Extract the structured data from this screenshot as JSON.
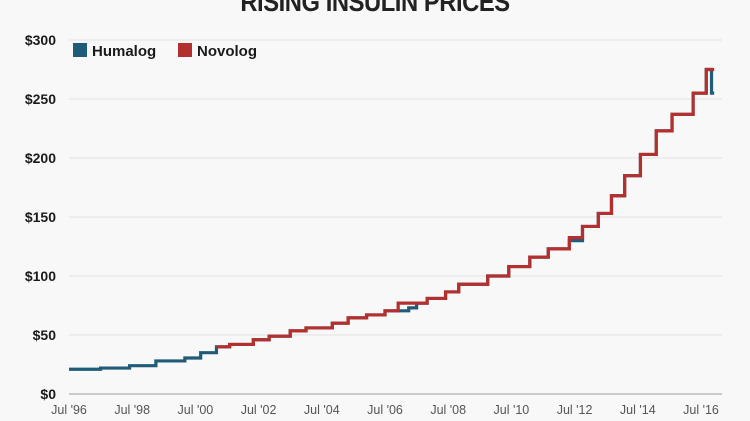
{
  "chart_data": {
    "type": "line",
    "step": true,
    "title": "RISING INSULIN PRICES",
    "xlabel": "",
    "ylabel": "",
    "ylim": [
      0,
      300
    ],
    "xlim": [
      "1996-07",
      "2017-01"
    ],
    "grid": true,
    "legend_position": "top-left",
    "y_ticks": [
      "$0",
      "$50",
      "$100",
      "$150",
      "$200",
      "$250",
      "$300"
    ],
    "y_tick_values": [
      0,
      50,
      100,
      150,
      200,
      250,
      300
    ],
    "x_ticks": [
      "Jul '96",
      "Jul '98",
      "Jul '00",
      "Jul '02",
      "Jul '04",
      "Jul '06",
      "Jul '08",
      "Jul '10",
      "Jul '12",
      "Jul '14",
      "Jul '16"
    ],
    "x_tick_values": [
      "1996-07",
      "1998-07",
      "2000-07",
      "2002-07",
      "2004-07",
      "2006-07",
      "2008-07",
      "2010-07",
      "2012-07",
      "2014-07",
      "2016-07"
    ],
    "series": [
      {
        "name": "Humalog",
        "color": "#1f5c78",
        "end": "2016-12",
        "points": [
          [
            "1996-07",
            21
          ],
          [
            "1997-07",
            22
          ],
          [
            "1998-06",
            24
          ],
          [
            "1999-04",
            28
          ],
          [
            "2000-03",
            30.5
          ],
          [
            "2000-09",
            35
          ],
          [
            "2001-03",
            40
          ],
          [
            "2001-08",
            42
          ],
          [
            "2002-05",
            46
          ],
          [
            "2002-11",
            49
          ],
          [
            "2003-07",
            53.5
          ],
          [
            "2004-01",
            56
          ],
          [
            "2004-11",
            60
          ],
          [
            "2005-05",
            64.5
          ],
          [
            "2005-12",
            67
          ],
          [
            "2006-07",
            70.5
          ],
          [
            "2007-04",
            73
          ],
          [
            "2007-07",
            77
          ],
          [
            "2007-11",
            81
          ],
          [
            "2008-06",
            86.5
          ],
          [
            "2008-11",
            93
          ],
          [
            "2009-10",
            100
          ],
          [
            "2010-06",
            108
          ],
          [
            "2011-02",
            116
          ],
          [
            "2011-09",
            123
          ],
          [
            "2012-05",
            130
          ],
          [
            "2012-10",
            142
          ],
          [
            "2013-04",
            153
          ],
          [
            "2013-09",
            168
          ],
          [
            "2014-02",
            185
          ],
          [
            "2014-08",
            203
          ],
          [
            "2015-02",
            223
          ],
          [
            "2015-08",
            237
          ],
          [
            "2016-04",
            255
          ],
          [
            "2016-09",
            275
          ],
          [
            "2016-11",
            255
          ]
        ]
      },
      {
        "name": "Novolog",
        "color": "#b3302f",
        "end": "2016-12",
        "points": [
          [
            "2001-03",
            40
          ],
          [
            "2001-08",
            42
          ],
          [
            "2002-05",
            46
          ],
          [
            "2002-11",
            49
          ],
          [
            "2003-07",
            53.5
          ],
          [
            "2004-01",
            56
          ],
          [
            "2004-11",
            60
          ],
          [
            "2005-05",
            64.5
          ],
          [
            "2005-12",
            67
          ],
          [
            "2006-07",
            70.5
          ],
          [
            "2006-12",
            77
          ],
          [
            "2007-11",
            81
          ],
          [
            "2008-06",
            86.5
          ],
          [
            "2008-11",
            93
          ],
          [
            "2009-10",
            100
          ],
          [
            "2010-06",
            108
          ],
          [
            "2011-02",
            116
          ],
          [
            "2011-09",
            123
          ],
          [
            "2012-05",
            132.5
          ],
          [
            "2012-10",
            142
          ],
          [
            "2013-04",
            153
          ],
          [
            "2013-09",
            168
          ],
          [
            "2014-02",
            185
          ],
          [
            "2014-08",
            203
          ],
          [
            "2015-02",
            223
          ],
          [
            "2015-08",
            237
          ],
          [
            "2016-04",
            255
          ],
          [
            "2016-09",
            275
          ]
        ]
      }
    ]
  }
}
